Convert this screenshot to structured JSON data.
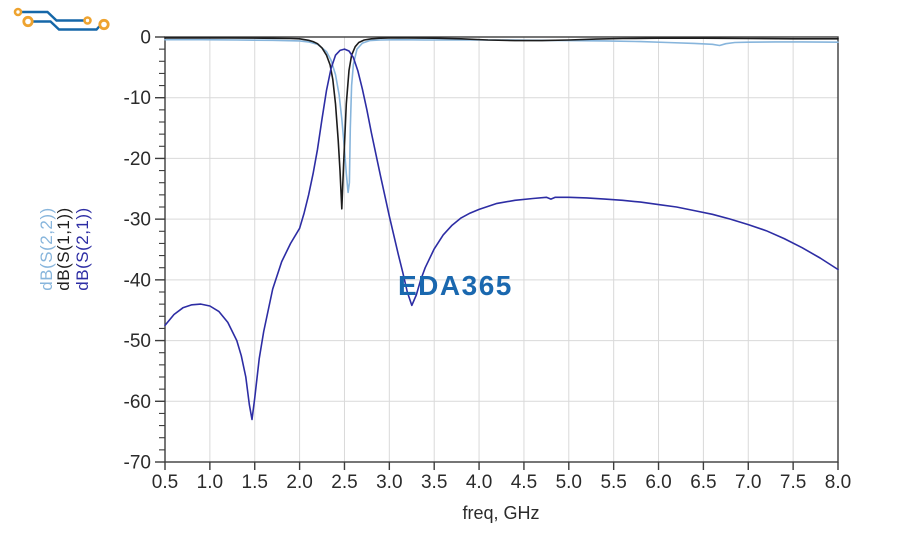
{
  "figure": {
    "xlabel": "freq, GHz",
    "ylabels": [
      {
        "text": "dB(S(2,2))",
        "color": "#87b5dc"
      },
      {
        "text": "dB(S(1,1))",
        "color": "#1c1c1c"
      },
      {
        "text": "dB(S(2,1))",
        "color": "#2d2da4"
      }
    ],
    "watermark": {
      "text": "EDA365",
      "text_color": "#1a68af",
      "trace_color": "#1567a8",
      "pad_color": "#eea32f"
    }
  },
  "chart_data": {
    "type": "line",
    "title": "",
    "xlabel": "freq, GHz",
    "ylabel": "dB",
    "xlim": [
      0.5,
      8.0
    ],
    "ylim": [
      -70,
      0
    ],
    "x_ticks": [
      0.5,
      1.0,
      1.5,
      2.0,
      2.5,
      3.0,
      3.5,
      4.0,
      4.5,
      5.0,
      5.5,
      6.0,
      6.5,
      7.0,
      7.5,
      8.0
    ],
    "x_tick_labels": [
      "0.5",
      "1.0",
      "1.5",
      "2.0",
      "2.5",
      "3.0",
      "3.5",
      "4.0",
      "4.5",
      "5.0",
      "5.5",
      "6.0",
      "6.5",
      "7.0",
      "7.5",
      "8.0"
    ],
    "y_ticks": [
      0,
      -10,
      -20,
      -30,
      -40,
      -50,
      -60,
      -70
    ],
    "y_tick_labels": [
      "0",
      "-10",
      "-20",
      "-30",
      "-40",
      "-50",
      "-60",
      "-70"
    ],
    "y_minor_tick_step": 2,
    "grid": true,
    "legend_position": "rotated labels left of y-axis",
    "grid_color": "#d9d9d9",
    "axis_color": "#3c3c3c",
    "tick_label_color": "#2b2b2b",
    "series": [
      {
        "name": "dB(S(2,2))",
        "color": "#87b5dc",
        "x": [
          0.5,
          0.9,
          1.3,
          1.7,
          2.0,
          2.1,
          2.2,
          2.3,
          2.35,
          2.4,
          2.44,
          2.47,
          2.5,
          2.52,
          2.54,
          2.555,
          2.565,
          2.58,
          2.6,
          2.64,
          2.7,
          2.78,
          2.9,
          3.1,
          3.4,
          3.8,
          4.2,
          4.6,
          5.0,
          5.4,
          5.8,
          6.1,
          6.4,
          6.6,
          6.68,
          6.75,
          6.85,
          7.0,
          7.3,
          7.6,
          8.0
        ],
        "y": [
          -0.45,
          -0.45,
          -0.5,
          -0.55,
          -0.65,
          -0.8,
          -1.2,
          -2.4,
          -3.8,
          -6.2,
          -9.5,
          -13.5,
          -18.5,
          -22.5,
          -25.6,
          -24.0,
          -15.0,
          -8.0,
          -4.5,
          -2.0,
          -1.0,
          -0.6,
          -0.5,
          -0.45,
          -0.5,
          -0.5,
          -0.5,
          -0.55,
          -0.6,
          -0.65,
          -0.75,
          -0.9,
          -1.05,
          -1.2,
          -1.4,
          -1.1,
          -0.9,
          -0.85,
          -0.8,
          -0.8,
          -0.85
        ]
      },
      {
        "name": "dB(S(1,1))",
        "color": "#1c1c1c",
        "x": [
          0.5,
          0.8,
          1.2,
          1.6,
          1.9,
          2.0,
          2.1,
          2.15,
          2.2,
          2.25,
          2.3,
          2.34,
          2.37,
          2.4,
          2.43,
          2.45,
          2.47,
          2.49,
          2.52,
          2.55,
          2.58,
          2.62,
          2.66,
          2.72,
          2.8,
          2.9,
          3.0,
          3.2,
          3.5,
          3.8,
          4.1,
          4.4,
          4.7,
          5.0,
          5.3,
          5.6,
          6.0,
          6.5,
          7.0,
          7.5,
          8.0
        ],
        "y": [
          -0.15,
          -0.15,
          -0.15,
          -0.2,
          -0.25,
          -0.3,
          -0.55,
          -0.75,
          -1.1,
          -1.8,
          -3.0,
          -4.6,
          -7.0,
          -11.0,
          -17.0,
          -22.0,
          -28.3,
          -21.0,
          -11.0,
          -5.5,
          -3.0,
          -1.6,
          -0.9,
          -0.5,
          -0.3,
          -0.2,
          -0.15,
          -0.15,
          -0.2,
          -0.3,
          -0.5,
          -0.6,
          -0.6,
          -0.5,
          -0.35,
          -0.25,
          -0.2,
          -0.2,
          -0.25,
          -0.3,
          -0.3
        ]
      },
      {
        "name": "dB(S(2,1))",
        "color": "#2d2da4",
        "x": [
          0.5,
          0.6,
          0.7,
          0.8,
          0.9,
          1.0,
          1.1,
          1.2,
          1.3,
          1.35,
          1.4,
          1.44,
          1.47,
          1.5,
          1.55,
          1.6,
          1.7,
          1.8,
          1.9,
          2.0,
          2.05,
          2.1,
          2.15,
          2.2,
          2.25,
          2.3,
          2.35,
          2.4,
          2.45,
          2.5,
          2.55,
          2.6,
          2.65,
          2.7,
          2.75,
          2.8,
          2.9,
          3.0,
          3.1,
          3.15,
          3.2,
          3.25,
          3.3,
          3.35,
          3.4,
          3.5,
          3.6,
          3.7,
          3.8,
          3.9,
          4.0,
          4.2,
          4.4,
          4.6,
          4.75,
          4.8,
          4.85,
          5.0,
          5.2,
          5.4,
          5.6,
          5.8,
          6.0,
          6.2,
          6.4,
          6.6,
          6.8,
          7.0,
          7.2,
          7.4,
          7.6,
          7.8,
          8.0
        ],
        "y": [
          -47.5,
          -45.7,
          -44.6,
          -44.1,
          -44.0,
          -44.3,
          -45.2,
          -47.0,
          -50.0,
          -52.5,
          -56.0,
          -60.5,
          -63.0,
          -59.5,
          -53.0,
          -48.5,
          -41.5,
          -37.0,
          -34.0,
          -31.5,
          -29.0,
          -26.0,
          -22.5,
          -18.5,
          -13.5,
          -8.8,
          -5.2,
          -3.0,
          -2.2,
          -2.0,
          -2.3,
          -3.4,
          -5.6,
          -8.6,
          -12.0,
          -15.8,
          -22.8,
          -29.5,
          -35.8,
          -38.8,
          -42.0,
          -44.2,
          -42.5,
          -40.0,
          -38.0,
          -34.9,
          -32.6,
          -31.0,
          -29.8,
          -29.0,
          -28.4,
          -27.4,
          -26.9,
          -26.6,
          -26.4,
          -26.7,
          -26.4,
          -26.4,
          -26.5,
          -26.7,
          -26.9,
          -27.2,
          -27.6,
          -28.0,
          -28.6,
          -29.2,
          -30.0,
          -30.9,
          -31.9,
          -33.2,
          -34.7,
          -36.4,
          -38.3
        ]
      }
    ]
  }
}
